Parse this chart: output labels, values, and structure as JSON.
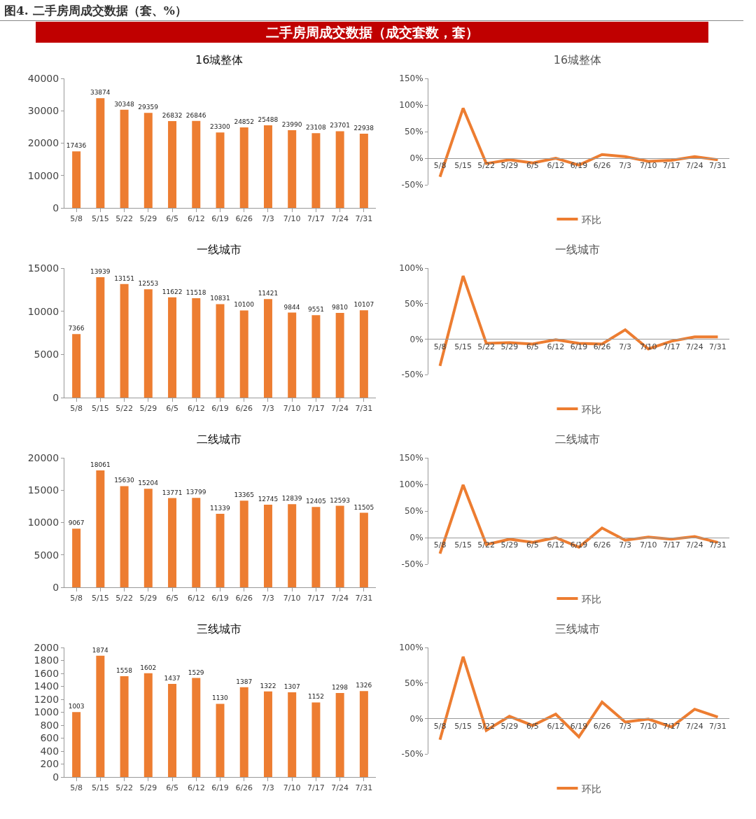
{
  "chart_data": [
    {
      "type": "other",
      "title": "图4. 二手房周成交数据（套、%）",
      "subtitle": "二手房周成交数据（成交套数，套）"
    },
    {
      "type": "bar",
      "title": "16城整体",
      "categories": [
        "5/8",
        "5/15",
        "5/22",
        "5/29",
        "6/5",
        "6/12",
        "6/19",
        "6/26",
        "7/3",
        "7/10",
        "7/17",
        "7/24",
        "7/31"
      ],
      "series": [
        {
          "color": "#ed7d31",
          "values": [
            17436,
            33874,
            30348,
            29359,
            26832,
            26846,
            23300,
            24852,
            25488,
            23990,
            23108,
            23701,
            22938
          ]
        }
      ],
      "ylim": [
        0,
        40000
      ],
      "yticks": [
        0,
        10000,
        20000,
        30000,
        40000
      ],
      "data_labels": true,
      "grid": false,
      "legend": false
    },
    {
      "type": "line",
      "title": "16城整体",
      "categories": [
        "5/8",
        "5/15",
        "5/22",
        "5/29",
        "6/5",
        "6/12",
        "6/19",
        "6/26",
        "7/3",
        "7/10",
        "7/17",
        "7/24",
        "7/31"
      ],
      "series": [
        {
          "name": "环比",
          "color": "#ed7d31",
          "values": [
            -35,
            94,
            -10,
            -3,
            -9,
            0,
            -13,
            7,
            3,
            -6,
            -4,
            3,
            -3
          ]
        }
      ],
      "ylim": [
        -50,
        150
      ],
      "yticks": [
        {
          "value": -50,
          "label": "-50%"
        },
        {
          "value": 0,
          "label": "0%"
        },
        {
          "value": 50,
          "label": "50%"
        },
        {
          "value": 100,
          "label": "100%"
        },
        {
          "value": 150,
          "label": "150%"
        }
      ],
      "grid": false,
      "legend": "bottom",
      "marker": "none",
      "line_style": "solid"
    },
    {
      "type": "bar",
      "title": "一线城市",
      "categories": [
        "5/8",
        "5/15",
        "5/22",
        "5/29",
        "6/5",
        "6/12",
        "6/19",
        "6/26",
        "7/3",
        "7/10",
        "7/17",
        "7/24",
        "7/31"
      ],
      "series": [
        {
          "color": "#ed7d31",
          "values": [
            7366,
            13939,
            13151,
            12553,
            11622,
            11518,
            10831,
            10100,
            11421,
            9844,
            9551,
            9810,
            10107
          ]
        }
      ],
      "ylim": [
        0,
        15000
      ],
      "yticks": [
        0,
        5000,
        10000,
        15000
      ],
      "data_labels": true,
      "grid": false,
      "legend": false
    },
    {
      "type": "line",
      "title": "一线城市",
      "categories": [
        "5/8",
        "5/15",
        "5/22",
        "5/29",
        "6/5",
        "6/12",
        "6/19",
        "6/26",
        "7/3",
        "7/10",
        "7/17",
        "7/24",
        "7/31"
      ],
      "series": [
        {
          "name": "环比",
          "color": "#ed7d31",
          "values": [
            -38,
            89,
            -6,
            -5,
            -7,
            -1,
            -6,
            -7,
            13,
            -14,
            -3,
            3,
            3
          ]
        }
      ],
      "ylim": [
        -50,
        100
      ],
      "yticks": [
        {
          "value": -50,
          "label": "-50%"
        },
        {
          "value": 0,
          "label": "0%"
        },
        {
          "value": 50,
          "label": "50%"
        },
        {
          "value": 100,
          "label": "100%"
        }
      ],
      "grid": false,
      "legend": "bottom",
      "marker": "none",
      "line_style": "solid"
    },
    {
      "type": "bar",
      "title": "二线城市",
      "categories": [
        "5/8",
        "5/15",
        "5/22",
        "5/29",
        "6/5",
        "6/12",
        "6/19",
        "6/26",
        "7/3",
        "7/10",
        "7/17",
        "7/24",
        "7/31"
      ],
      "series": [
        {
          "color": "#ed7d31",
          "values": [
            9067,
            18061,
            15630,
            15204,
            13771,
            13799,
            11339,
            13365,
            12745,
            12839,
            12405,
            12593,
            11505
          ]
        }
      ],
      "ylim": [
        0,
        20000
      ],
      "yticks": [
        0,
        5000,
        10000,
        15000,
        20000
      ],
      "data_labels": true,
      "grid": false,
      "legend": false
    },
    {
      "type": "line",
      "title": "二线城市",
      "categories": [
        "5/8",
        "5/15",
        "5/22",
        "5/29",
        "6/5",
        "6/12",
        "6/19",
        "6/26",
        "7/3",
        "7/10",
        "7/17",
        "7/24",
        "7/31"
      ],
      "series": [
        {
          "name": "环比",
          "color": "#ed7d31",
          "values": [
            -30,
            99,
            -13,
            -3,
            -9,
            0,
            -18,
            18,
            -5,
            1,
            -3,
            2,
            -9
          ]
        }
      ],
      "ylim": [
        -50,
        150
      ],
      "yticks": [
        {
          "value": -50,
          "label": "-50%"
        },
        {
          "value": 0,
          "label": "0%"
        },
        {
          "value": 50,
          "label": "50%"
        },
        {
          "value": 100,
          "label": "100%"
        },
        {
          "value": 150,
          "label": "150%"
        }
      ],
      "grid": false,
      "legend": "bottom",
      "marker": "none",
      "line_style": "solid"
    },
    {
      "type": "bar",
      "title": "三线城市",
      "categories": [
        "5/8",
        "5/15",
        "5/22",
        "5/29",
        "6/5",
        "6/12",
        "6/19",
        "6/26",
        "7/3",
        "7/10",
        "7/17",
        "7/24",
        "7/31"
      ],
      "series": [
        {
          "color": "#ed7d31",
          "values": [
            1003,
            1874,
            1558,
            1602,
            1437,
            1529,
            1130,
            1387,
            1322,
            1307,
            1152,
            1298,
            1326
          ]
        }
      ],
      "ylim": [
        0,
        2000
      ],
      "yticks": [
        0,
        200,
        400,
        600,
        800,
        1000,
        1200,
        1400,
        1600,
        1800,
        2000
      ],
      "data_labels": true,
      "grid": false,
      "legend": false
    },
    {
      "type": "line",
      "title": "三线城市",
      "categories": [
        "5/8",
        "5/15",
        "5/22",
        "5/29",
        "6/5",
        "6/12",
        "6/19",
        "6/26",
        "7/3",
        "7/10",
        "7/17",
        "7/24",
        "7/31"
      ],
      "series": [
        {
          "name": "环比",
          "color": "#ed7d31",
          "values": [
            -30,
            87,
            -17,
            3,
            -10,
            6,
            -26,
            23,
            -5,
            -1,
            -12,
            13,
            2
          ]
        }
      ],
      "ylim": [
        -50,
        100
      ],
      "yticks": [
        {
          "value": -50,
          "label": "-50%"
        },
        {
          "value": 0,
          "label": "0%"
        },
        {
          "value": 50,
          "label": "50%"
        },
        {
          "value": 100,
          "label": "100%"
        }
      ],
      "grid": false,
      "legend": "bottom",
      "marker": "none",
      "line_style": "solid"
    }
  ]
}
